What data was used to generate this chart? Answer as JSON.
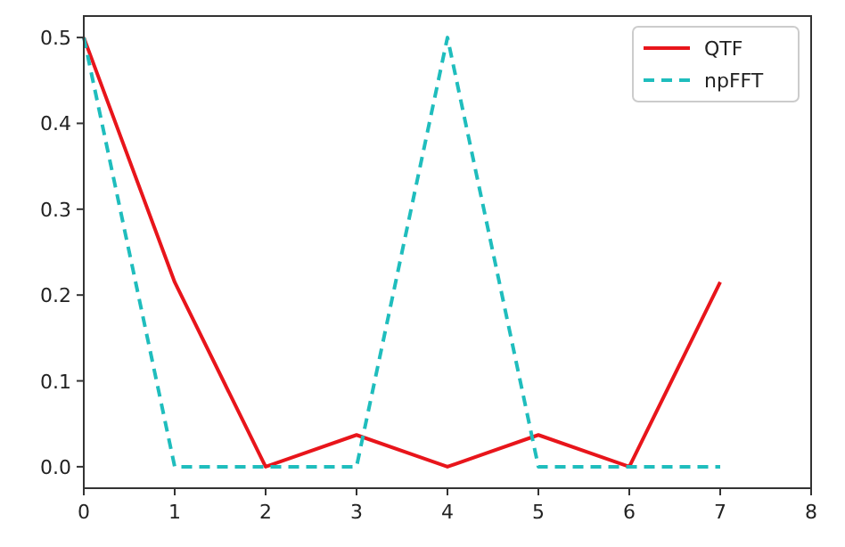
{
  "chart_data": {
    "type": "line",
    "x": [
      0,
      1,
      2,
      3,
      4,
      5,
      6,
      7
    ],
    "series": [
      {
        "name": "QTF",
        "color": "#e8151b",
        "line_style": "solid",
        "values": [
          0.5,
          0.215,
          0,
          0.037,
          0,
          0.037,
          0,
          0.215
        ]
      },
      {
        "name": "npFFT",
        "color": "#1fbdbd",
        "line_style": "dashed",
        "values": [
          0.5,
          0,
          0,
          0,
          0.5,
          0,
          0,
          0
        ]
      }
    ],
    "xlim": [
      0,
      8
    ],
    "xticks": [
      0,
      1,
      2,
      3,
      4,
      5,
      6,
      7,
      8
    ],
    "ylim": [
      -0.025,
      0.525
    ],
    "yticks": [
      {
        "value": 0,
        "label": "0.0"
      },
      0.1,
      0.2,
      0.3,
      0.4,
      0.5
    ],
    "grid": false,
    "legend": "top right"
  }
}
